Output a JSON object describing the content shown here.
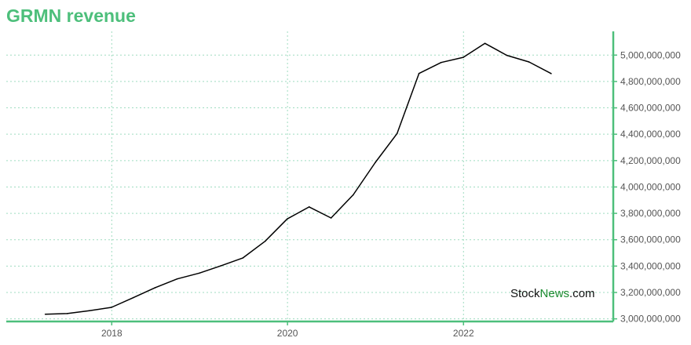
{
  "chart_data": {
    "type": "line",
    "title": "GRMN revenue",
    "xlabel": "",
    "ylabel": "",
    "x": [
      "2017-03-31",
      "2017-06-30",
      "2017-09-30",
      "2017-12-31",
      "2018-03-31",
      "2018-06-30",
      "2018-09-30",
      "2018-12-31",
      "2019-03-31",
      "2019-06-30",
      "2019-09-30",
      "2019-12-31",
      "2020-03-31",
      "2020-06-30",
      "2020-09-30",
      "2020-12-31",
      "2021-03-31",
      "2021-06-30",
      "2021-09-30",
      "2021-12-31",
      "2022-03-31",
      "2022-06-30",
      "2022-09-30",
      "2022-12-31"
    ],
    "series": [
      {
        "values": [
          3035000000,
          3040000000,
          3062000000,
          3087000000,
          3160000000,
          3236000000,
          3303000000,
          3347000000,
          3403000000,
          3462000000,
          3588000000,
          3758000000,
          3849000000,
          3765000000,
          3940000000,
          4187000000,
          4405000000,
          4861000000,
          4944000000,
          4983000000,
          5089000000,
          4998000000,
          4948000000,
          4860000000
        ],
        "color": "#000000"
      }
    ],
    "ylim": [
      2980000000,
      5180000000
    ],
    "yticks": [
      3000000000,
      3200000000,
      3400000000,
      3600000000,
      3800000000,
      4000000000,
      4200000000,
      4400000000,
      4600000000,
      4800000000,
      5000000000
    ],
    "ytick_labels": [
      "3,000,000,000",
      "3,200,000,000",
      "3,400,000,000",
      "3,600,000,000",
      "3,800,000,000",
      "4,000,000,000",
      "4,200,000,000",
      "4,400,000,000",
      "4,600,000,000",
      "4,800,000,000",
      "5,000,000,000"
    ],
    "xticks": [
      "2018-01-01",
      "2020-01-01",
      "2022-01-01"
    ],
    "xtick_labels": [
      "2018",
      "2020",
      "2022"
    ],
    "xlim": [
      "2016-10-20",
      "2023-09-15"
    ],
    "grid": true,
    "y_axis_side": "right",
    "accent_color": "#4dbf7b"
  },
  "watermark": {
    "part1": "Stock",
    "part2": "News",
    "part3": ".com"
  }
}
